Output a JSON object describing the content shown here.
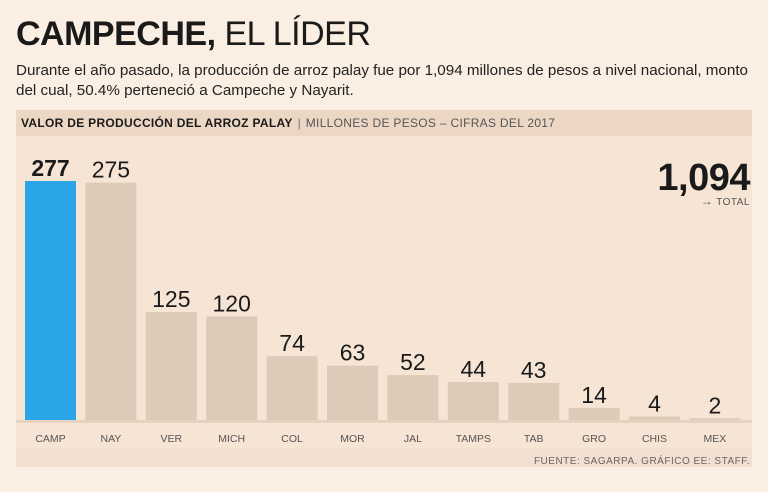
{
  "title_bold": "CAMPECHE,",
  "title_light": "EL LÍDER",
  "subtitle": "Durante el año pasado, la producción de arroz palay fue por 1,094 millones de pesos a nivel nacional, monto del cual, 50.4% perteneció a Campeche y Nayarit.",
  "chart_header": {
    "main": "VALOR DE PRODUCCIÓN DEL ARROZ PALAY",
    "separator": "|",
    "sub": "MILLONES DE PESOS – CIFRAS DEL 2017"
  },
  "total": {
    "value": "1,094",
    "arrow": "→",
    "label": "TOTAL"
  },
  "source": "FUENTE: SAGARPA. GRÁFICO EE: STAFF.",
  "colors": {
    "highlight": "#2aa6e8",
    "bar": "#ddcab8",
    "baseline": "#e5d2c1"
  },
  "chart_data": {
    "type": "bar",
    "title": "VALOR DE PRODUCCIÓN DEL ARROZ PALAY",
    "ylabel": "MILLONES DE PESOS – CIFRAS DEL 2017",
    "xlabel": "",
    "ylim": [
      0,
      277
    ],
    "categories": [
      "CAMP",
      "NAY",
      "VER",
      "MICH",
      "COL",
      "MOR",
      "JAL",
      "TAMPS",
      "TAB",
      "GRO",
      "CHIS",
      "MEX"
    ],
    "values": [
      277,
      275,
      125,
      120,
      74,
      63,
      52,
      44,
      43,
      14,
      4,
      2
    ],
    "highlight_index": 0
  }
}
